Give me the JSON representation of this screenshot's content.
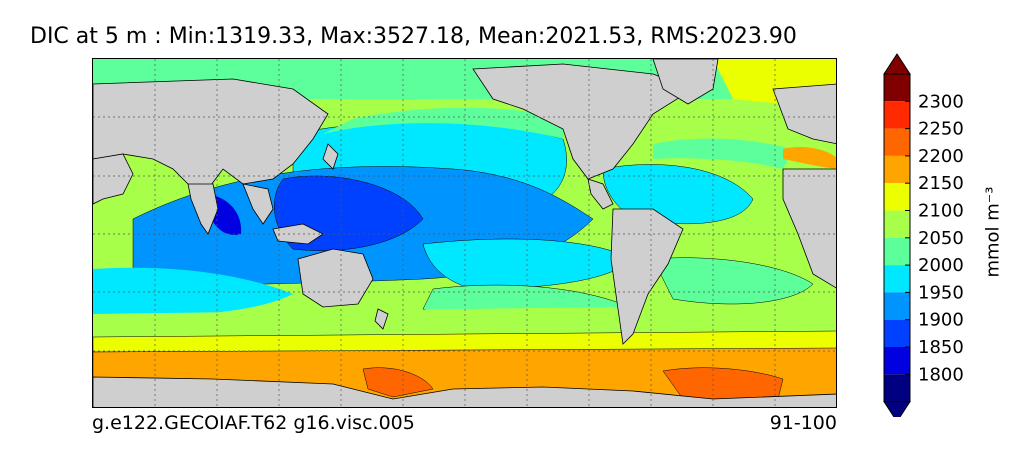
{
  "figure": {
    "title": "DIC at 5 m : Min:1319.33, Max:3527.18, Mean:2021.53, RMS:2023.90",
    "footer_left": "g.e122.GECOIAF.T62 g16.visc.005",
    "footer_right": "91-100"
  },
  "colorbar": {
    "unit_label": "mmol m⁻³",
    "ticks": [
      "2300",
      "2250",
      "2200",
      "2150",
      "2100",
      "2050",
      "2000",
      "1950",
      "1900",
      "1850",
      "1800"
    ],
    "colors": [
      "#800000",
      "#ff2a00",
      "#ff6600",
      "#ffa500",
      "#ebff00",
      "#a8ff4a",
      "#5cff9a",
      "#00e8ff",
      "#0094ff",
      "#0040ff",
      "#0000e0",
      "#000080"
    ]
  },
  "palette": {
    "land": "#cfcfcf",
    "coastline": "#000000",
    "grid": "#555555",
    "ocean_base": "#a8ff4a"
  }
}
